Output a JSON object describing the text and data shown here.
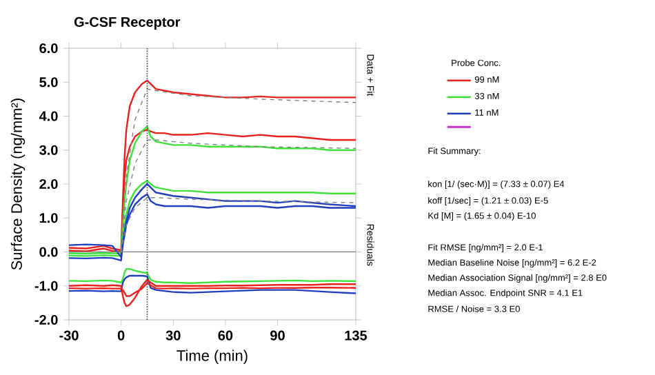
{
  "chart_data": {
    "type": "line",
    "title": "G-CSF Receptor",
    "xlabel": "Time (min)",
    "ylabel": "Surface Density (ng/mm²)",
    "legend_title": "Probe Conc.",
    "x": [
      -30,
      -20,
      -10,
      -5,
      0,
      1,
      2,
      3,
      5,
      8,
      12,
      15,
      17,
      20,
      25,
      30,
      40,
      50,
      60,
      70,
      80,
      90,
      100,
      110,
      120,
      135
    ],
    "xlim": [
      -30,
      135
    ],
    "ylim": [
      -2,
      6
    ],
    "xticks": [
      -30,
      0,
      30,
      60,
      90,
      135
    ],
    "yticks": [
      {
        "value": -2,
        "label": "-2.0"
      },
      {
        "value": -1,
        "label": "-1.0"
      },
      {
        "value": 0,
        "label": "0.0"
      },
      {
        "value": 1,
        "label": "1.0"
      },
      {
        "value": 2,
        "label": "2.0"
      },
      {
        "value": 3,
        "label": "3.0"
      },
      {
        "value": 4,
        "label": "4.0"
      },
      {
        "value": 5,
        "label": "5.0"
      },
      {
        "value": 6,
        "label": "6.0"
      }
    ],
    "legend": "right",
    "series": [
      {
        "name": "99 nM",
        "color": "#e8211d",
        "values": [
          0.12,
          0.1,
          0.18,
          0.1,
          0.05,
          1.5,
          2.8,
          3.6,
          4.3,
          4.7,
          4.95,
          5.05,
          4.95,
          4.8,
          4.75,
          4.7,
          4.65,
          4.6,
          4.55,
          4.55,
          4.58,
          4.55,
          4.55,
          4.55,
          4.55,
          4.55
        ]
      },
      {
        "color": "#e8211d",
        "values": [
          0.04,
          0.02,
          0.1,
          0.03,
          0,
          1.2,
          2.2,
          2.7,
          3.1,
          3.4,
          3.55,
          3.6,
          3.55,
          3.5,
          3.5,
          3.45,
          3.45,
          3.5,
          3.45,
          3.4,
          3.45,
          3.4,
          3.4,
          3.35,
          3.3,
          3.3
        ]
      },
      {
        "name": "33 nM",
        "color": "#3ee23a",
        "values": [
          -0.04,
          -0.05,
          -0.03,
          -0.04,
          -0.05,
          0.8,
          1.5,
          2.0,
          2.7,
          3.2,
          3.55,
          3.7,
          3.4,
          3.25,
          3.2,
          3.15,
          3.15,
          3.1,
          3.1,
          3.1,
          3.1,
          3.05,
          3.05,
          3.05,
          3.0,
          3.0
        ]
      },
      {
        "color": "#3ee23a",
        "values": [
          -0.11,
          -0.12,
          -0.1,
          -0.11,
          -0.12,
          0.4,
          0.8,
          1.1,
          1.5,
          1.8,
          2.0,
          2.1,
          2.0,
          1.9,
          1.85,
          1.8,
          1.8,
          1.75,
          1.75,
          1.75,
          1.75,
          1.75,
          1.75,
          1.75,
          1.72,
          1.72
        ]
      },
      {
        "name": "11 nM",
        "color": "#1f3fbf",
        "values": [
          -0.18,
          -0.19,
          -0.17,
          -0.18,
          -0.25,
          0.3,
          0.6,
          0.9,
          1.3,
          1.6,
          1.85,
          2.0,
          1.9,
          1.75,
          1.7,
          1.65,
          1.6,
          1.55,
          1.5,
          1.5,
          1.5,
          1.45,
          1.5,
          1.45,
          1.4,
          1.35
        ]
      },
      {
        "color": "#1f3fbf",
        "values": [
          0.2,
          0.22,
          0.2,
          0.18,
          -0.15,
          0.2,
          0.5,
          0.8,
          1.1,
          1.4,
          1.6,
          1.7,
          1.5,
          1.4,
          1.35,
          1.35,
          1.35,
          1.3,
          1.35,
          1.35,
          1.35,
          1.3,
          1.35,
          1.35,
          1.3,
          1.3
        ]
      },
      {
        "color": "#3ee23a",
        "values": [
          -0.85,
          -0.86,
          -0.84,
          -0.85,
          -0.9,
          -0.8,
          -0.6,
          -0.5,
          -0.5,
          -0.55,
          -0.6,
          -0.62,
          -0.82,
          -0.88,
          -0.9,
          -0.9,
          -0.92,
          -0.9,
          -0.88,
          -0.87,
          -0.86,
          -0.85,
          -0.84,
          -0.86,
          -0.85,
          -0.86
        ]
      },
      {
        "color": "#1f3fbf",
        "values": [
          -1.15,
          -1.14,
          -1.16,
          -1.15,
          -1.16,
          -0.9,
          -0.8,
          -0.75,
          -0.7,
          -0.7,
          -0.7,
          -0.72,
          -1.06,
          -1.12,
          -1.15,
          -1.18,
          -1.2,
          -1.18,
          -1.16,
          -1.14,
          -1.12,
          -1.12,
          -1.12,
          -1.15,
          -1.18,
          -1.22
        ]
      },
      {
        "color": "#e8211d",
        "values": [
          -1.0,
          -0.98,
          -1.0,
          -0.98,
          -1.0,
          -1.3,
          -1.5,
          -1.6,
          -1.55,
          -1.35,
          -1.0,
          -0.82,
          -0.9,
          -1.0,
          -1.0,
          -1.0,
          -1.0,
          -1.0,
          -0.99,
          -0.99,
          -0.98,
          -0.97,
          -0.97,
          -0.97,
          -0.95,
          -0.95
        ]
      },
      {
        "color": "#e8211d",
        "values": [
          -1.07,
          -1.08,
          -1.07,
          -1.08,
          -1.08,
          -1.12,
          -1.2,
          -1.3,
          -1.3,
          -1.2,
          -1.08,
          -0.92,
          -0.98,
          -1.07,
          -1.08,
          -1.07,
          -1.08,
          -1.07,
          -1.07,
          -1.06,
          -1.07,
          -1.06,
          -1.06,
          -1.05,
          -1.05,
          -1.06
        ]
      },
      {
        "color": "#808080",
        "line_style": "dashed",
        "x": [
          0,
          3,
          8,
          15,
          20,
          40,
          80,
          135
        ],
        "values": [
          0,
          2.2,
          3.9,
          4.8,
          4.75,
          4.6,
          4.5,
          4.4
        ]
      },
      {
        "color": "#808080",
        "line_style": "dashed",
        "x": [
          0,
          3,
          8,
          15,
          20,
          40,
          80,
          135
        ],
        "values": [
          0,
          1.5,
          2.6,
          3.3,
          3.3,
          3.2,
          3.1,
          3.05
        ]
      },
      {
        "color": "#808080",
        "line_style": "dashed",
        "x": [
          0,
          3,
          8,
          15,
          20,
          40,
          80,
          135
        ],
        "values": [
          0,
          0.8,
          1.3,
          1.6,
          1.6,
          1.55,
          1.5,
          1.45
        ]
      },
      {
        "color": "#cc33cc",
        "values": [
          null,
          null,
          null,
          null,
          null,
          null,
          null,
          null,
          null,
          null,
          null,
          null,
          null,
          null,
          null,
          null,
          null,
          null,
          null,
          null,
          null,
          null,
          null,
          null,
          null,
          null
        ]
      }
    ],
    "ref_lines": [
      {
        "axis": "y",
        "value": 0,
        "color": "#808080",
        "line_style": "solid"
      },
      {
        "axis": "x",
        "value": 15,
        "color": "#404040",
        "line_style": "dotted"
      }
    ],
    "annotations": [
      "Data + Fit",
      "Residuals",
      "Fit Summary:",
      "kon  [1/ (sec·M)]  =  (7.33 ± 0.07) E4",
      "koff  [1/sec]  =  (1.21 ± 0.03) E-5",
      "Kd  [M]  =  (1.65 ± 0.04) E-10",
      "Fit RMSE [ng/mm²]  =  2.0 E-1",
      "Median Baseline Noise [ng/mm²]  =  6.2 E-2",
      "Median Association Signal [ng/mm²]  =  2.8 E0",
      "Median Assoc. Endpoint SNR  =  4.1 E1",
      "RMSE / Noise  =  3.3 E0"
    ]
  }
}
